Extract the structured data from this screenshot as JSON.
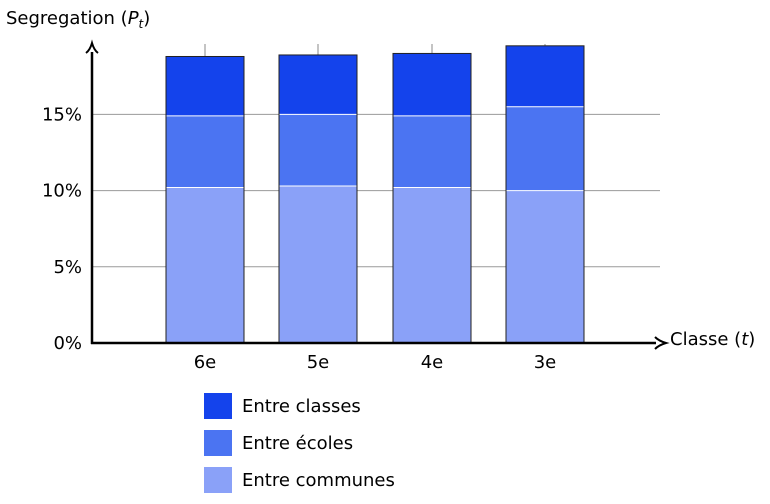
{
  "chart_data": {
    "type": "bar",
    "stacked": true,
    "categories": [
      "6e",
      "5e",
      "4e",
      "3e"
    ],
    "series": [
      {
        "name": "Entre communes",
        "color": "#8aa1f8",
        "values": [
          10.2,
          10.3,
          10.2,
          10.0
        ]
      },
      {
        "name": "Entre écoles",
        "color": "#4b74f2",
        "values": [
          4.7,
          4.7,
          4.7,
          5.5
        ]
      },
      {
        "name": "Entre classes",
        "color": "#1443ec",
        "values": [
          3.9,
          3.9,
          4.1,
          4.0
        ]
      }
    ],
    "y_ticks": [
      "0%",
      "5%",
      "10%",
      "15%"
    ],
    "ylim": [
      0,
      20
    ],
    "grid": true,
    "legend_position": "bottom",
    "ylabel": {
      "text": "Segregation (",
      "var": "P",
      "sub": "t",
      "close": ")"
    },
    "xlabel": {
      "text": "Classe (",
      "var": "t",
      "close": ")"
    }
  }
}
